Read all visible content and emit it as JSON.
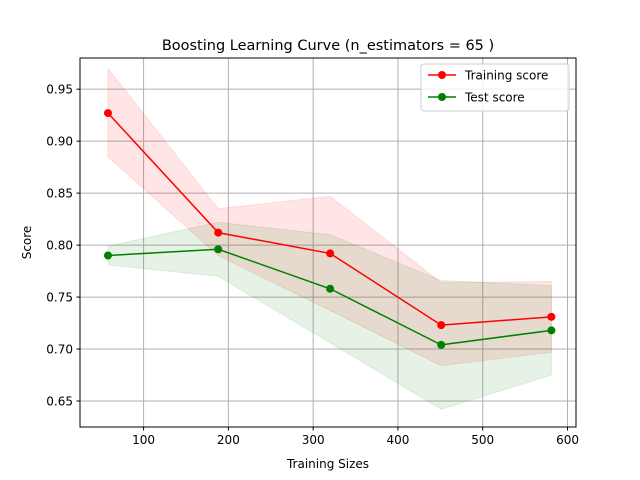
{
  "chart_data": {
    "type": "line",
    "title": "Boosting Learning Curve (n_estimators = 65 )",
    "xlabel": "Training Sizes",
    "ylabel": "Score",
    "xlim": [
      25,
      610
    ],
    "ylim": [
      0.625,
      0.98
    ],
    "x_ticks": [
      100,
      200,
      300,
      400,
      500,
      600
    ],
    "y_ticks": [
      0.65,
      0.7,
      0.75,
      0.8,
      0.85,
      0.9,
      0.95
    ],
    "grid": true,
    "legend_position": "top-right",
    "x": [
      58,
      188,
      320,
      451,
      581
    ],
    "series": [
      {
        "name": "Training score",
        "color": "#ff0000",
        "values": [
          0.927,
          0.812,
          0.792,
          0.723,
          0.731
        ],
        "band_upper": [
          0.97,
          0.835,
          0.847,
          0.764,
          0.765
        ],
        "band_lower": [
          0.885,
          0.79,
          0.737,
          0.684,
          0.697
        ]
      },
      {
        "name": "Test score",
        "color": "#008000",
        "values": [
          0.79,
          0.796,
          0.758,
          0.704,
          0.718
        ],
        "band_upper": [
          0.799,
          0.822,
          0.81,
          0.766,
          0.761
        ],
        "band_lower": [
          0.781,
          0.77,
          0.706,
          0.642,
          0.675
        ]
      }
    ]
  }
}
